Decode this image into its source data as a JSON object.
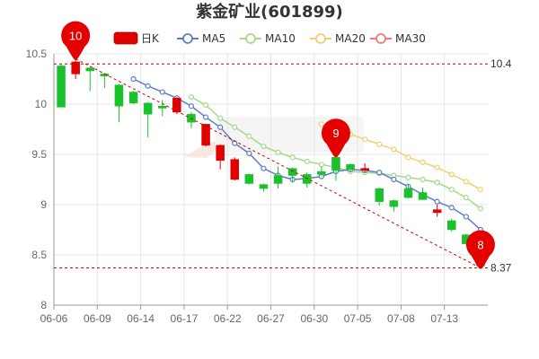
{
  "title": "紫金矿业(601899)",
  "chart_data": {
    "type": "candlestick",
    "title": "紫金矿业(601899)",
    "colors": {
      "up": "#e00000",
      "down": "#19c22a",
      "ma5": "#5b7ec8",
      "ma10": "#a8d88a",
      "ma20": "#f2cf6a",
      "ma30": "#ef7a7a",
      "grid": "#e6e6e6",
      "ref": "#cc0000"
    },
    "legend": {
      "placement": "top",
      "items": [
        {
          "name": "日K",
          "kind": "candle"
        },
        {
          "name": "MA5",
          "kind": "line",
          "color": "#5b7ec8"
        },
        {
          "name": "MA10",
          "kind": "line",
          "color": "#a8d88a"
        },
        {
          "name": "MA20",
          "kind": "line",
          "color": "#f2cf6a"
        },
        {
          "name": "MA30",
          "kind": "line",
          "color": "#ef7a7a"
        }
      ]
    },
    "yaxis": {
      "min": 8,
      "max": 10.5,
      "ticks": [
        10.5,
        10,
        9.5,
        9,
        8.5,
        8
      ],
      "tick_labels": [
        "10.5",
        "10",
        "9.5",
        "9",
        "8.5",
        "8"
      ],
      "grid": true
    },
    "xaxis": {
      "tick_labels": [
        "06-06",
        "06-09",
        "06-14",
        "06-17",
        "06-22",
        "06-27",
        "06-30",
        "07-05",
        "07-08",
        "07-13"
      ],
      "tick_indices": [
        0,
        3,
        6,
        9,
        12,
        15,
        18,
        21,
        24,
        27
      ]
    },
    "candles": [
      {
        "o": 10.38,
        "h": 10.4,
        "l": 9.97,
        "c": 9.97
      },
      {
        "o": 10.3,
        "h": 10.45,
        "l": 10.25,
        "c": 10.42
      },
      {
        "o": 10.36,
        "h": 10.37,
        "l": 10.13,
        "c": 10.33
      },
      {
        "o": 10.3,
        "h": 10.31,
        "l": 10.16,
        "c": 10.28
      },
      {
        "o": 10.19,
        "h": 10.2,
        "l": 9.82,
        "c": 9.98
      },
      {
        "o": 10.12,
        "h": 10.13,
        "l": 10.0,
        "c": 10.01
      },
      {
        "o": 10.01,
        "h": 10.02,
        "l": 9.67,
        "c": 9.9
      },
      {
        "o": 9.98,
        "h": 10.04,
        "l": 9.88,
        "c": 9.96
      },
      {
        "o": 9.92,
        "h": 10.07,
        "l": 9.9,
        "c": 10.06
      },
      {
        "o": 9.9,
        "h": 9.92,
        "l": 9.76,
        "c": 9.82
      },
      {
        "o": 9.59,
        "h": 9.8,
        "l": 9.58,
        "c": 9.8
      },
      {
        "o": 9.44,
        "h": 9.6,
        "l": 9.35,
        "c": 9.59
      },
      {
        "o": 9.25,
        "h": 9.47,
        "l": 9.24,
        "c": 9.45
      },
      {
        "o": 9.3,
        "h": 9.31,
        "l": 9.2,
        "c": 9.21
      },
      {
        "o": 9.2,
        "h": 9.21,
        "l": 9.13,
        "c": 9.16
      },
      {
        "o": 9.29,
        "h": 9.38,
        "l": 9.16,
        "c": 9.21
      },
      {
        "o": 9.36,
        "h": 9.37,
        "l": 9.22,
        "c": 9.29
      },
      {
        "o": 9.3,
        "h": 9.32,
        "l": 9.17,
        "c": 9.21
      },
      {
        "o": 9.33,
        "h": 9.38,
        "l": 9.28,
        "c": 9.3
      },
      {
        "o": 9.47,
        "h": 9.48,
        "l": 9.24,
        "c": 9.34
      },
      {
        "o": 9.4,
        "h": 9.41,
        "l": 9.33,
        "c": 9.35
      },
      {
        "o": 9.34,
        "h": 9.41,
        "l": 9.32,
        "c": 9.36
      },
      {
        "o": 9.16,
        "h": 9.17,
        "l": 8.99,
        "c": 9.03
      },
      {
        "o": 9.04,
        "h": 9.05,
        "l": 8.93,
        "c": 8.98
      },
      {
        "o": 9.16,
        "h": 9.2,
        "l": 9.06,
        "c": 9.07
      },
      {
        "o": 9.12,
        "h": 9.17,
        "l": 9.05,
        "c": 9.05
      },
      {
        "o": 8.92,
        "h": 9.0,
        "l": 8.88,
        "c": 8.95
      },
      {
        "o": 8.84,
        "h": 8.86,
        "l": 8.73,
        "c": 8.75
      },
      {
        "o": 8.7,
        "h": 8.71,
        "l": 8.6,
        "c": 8.61
      },
      {
        "o": 8.45,
        "h": 8.46,
        "l": 8.37,
        "c": 8.39
      }
    ],
    "ma5": [
      null,
      null,
      null,
      null,
      null,
      10.25,
      10.18,
      10.12,
      10.06,
      9.98,
      9.87,
      9.77,
      9.61,
      9.51,
      9.36,
      9.29,
      9.25,
      9.26,
      9.28,
      9.33,
      9.35,
      9.34,
      9.32,
      9.25,
      9.18,
      9.1,
      9.03,
      8.97,
      8.88,
      8.75
    ],
    "ma10": [
      null,
      null,
      null,
      null,
      null,
      null,
      null,
      null,
      null,
      10.07,
      9.99,
      9.86,
      9.77,
      9.68,
      9.58,
      9.52,
      9.47,
      9.43,
      9.4,
      9.37,
      9.33,
      9.32,
      9.31,
      9.29,
      9.27,
      9.25,
      9.22,
      9.15,
      9.07,
      8.96
    ],
    "ma20": [
      null,
      null,
      null,
      null,
      null,
      null,
      null,
      null,
      null,
      null,
      null,
      null,
      null,
      null,
      null,
      null,
      null,
      null,
      9.8,
      9.75,
      9.7,
      9.65,
      9.6,
      9.55,
      9.47,
      9.42,
      9.37,
      9.3,
      9.23,
      9.15
    ],
    "ma30": [],
    "reference_lines": [
      {
        "value": 10.4,
        "label": "10.4"
      },
      {
        "value": 8.37,
        "label": "8.37"
      }
    ],
    "trend_line": {
      "from_index": 1,
      "from_value": 10.45,
      "to_index": 29,
      "to_value": 8.37
    },
    "markers": [
      {
        "label": "10",
        "index": 1,
        "value": 10.45
      },
      {
        "label": "9",
        "index": 19,
        "value": 9.48
      },
      {
        "label": "8",
        "index": 29,
        "value": 8.37
      }
    ]
  }
}
